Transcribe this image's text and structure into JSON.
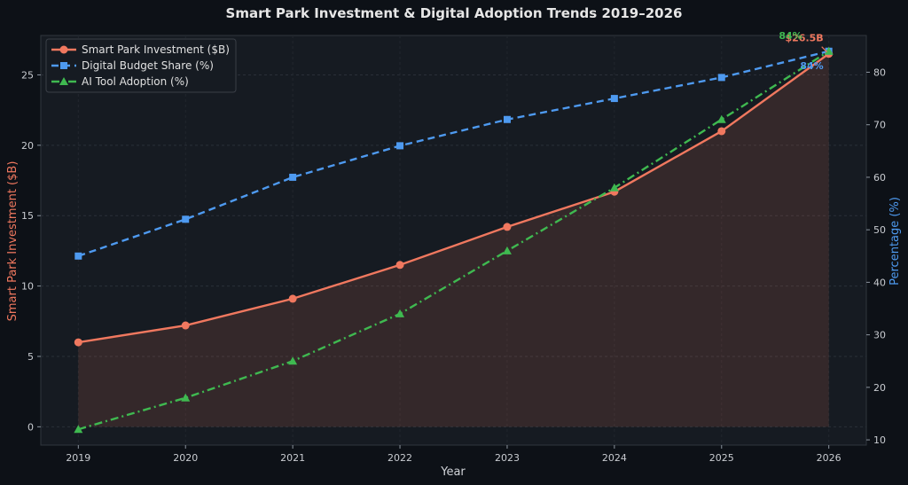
{
  "chart_data": {
    "type": "line",
    "title": "Smart Park Investment & Digital Adoption Trends  2019–2026",
    "xlabel": "Year",
    "ylabel_left": "Smart Park Investment ($B)",
    "ylabel_right": "Percentage (%)",
    "x": [
      2019,
      2020,
      2021,
      2022,
      2023,
      2024,
      2025,
      2026
    ],
    "ylim_left": [
      -1.3,
      27.8
    ],
    "ylim_right": [
      9,
      87
    ],
    "yticks_left": [
      0,
      5,
      10,
      15,
      20,
      25
    ],
    "yticks_right": [
      10,
      20,
      30,
      40,
      50,
      60,
      70,
      80
    ],
    "grid": true,
    "legend_position": "top-left",
    "series": [
      {
        "name": "Smart Park Investment ($B)",
        "axis": "left",
        "color": "#f0785f",
        "style": "solid",
        "marker": "circle",
        "values": [
          6.0,
          7.2,
          9.1,
          11.5,
          14.2,
          16.7,
          21.0,
          26.5
        ],
        "fill": true
      },
      {
        "name": "Digital Budget Share (%)",
        "axis": "right",
        "color": "#4e9af0",
        "style": "dashed",
        "marker": "square",
        "values": [
          45,
          52,
          60,
          66,
          71,
          75,
          79,
          84
        ]
      },
      {
        "name": "AI Tool Adoption (%)",
        "axis": "right",
        "color": "#3fb950",
        "style": "dashdot",
        "marker": "triangle",
        "values": [
          12,
          18,
          25,
          34,
          46,
          58,
          71,
          84
        ]
      }
    ],
    "annotations": [
      {
        "text": "$26.5B",
        "series": 0,
        "color": "#f0785f"
      },
      {
        "text": "84%",
        "series": 1,
        "color": "#4e9af0"
      },
      {
        "text": "84%",
        "series": 2,
        "color": "#3fb950"
      }
    ]
  }
}
